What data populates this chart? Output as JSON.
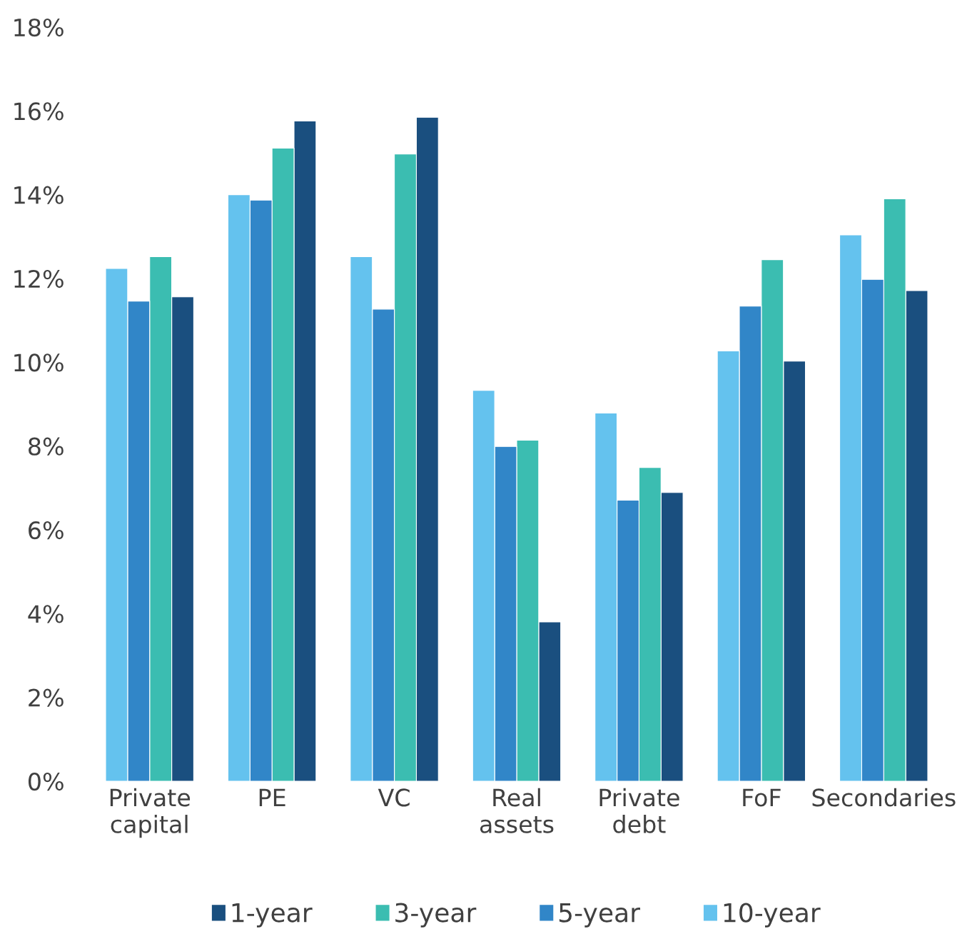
{
  "chart_data": {
    "type": "bar",
    "categories": [
      "Private\ncapital",
      "PE",
      "VC",
      "Real\nassets",
      "Private\ndebt",
      "FoF",
      "Secondaries"
    ],
    "series": [
      {
        "name": "1-year",
        "color": "#1a4f7f",
        "values": [
          11.56,
          15.76,
          15.85,
          3.8,
          6.89,
          10.03,
          11.71
        ]
      },
      {
        "name": "3-year",
        "color": "#3bbdb1",
        "values": [
          12.52,
          15.11,
          14.97,
          8.14,
          7.49,
          12.45,
          13.9
        ]
      },
      {
        "name": "5-year",
        "color": "#3186c8",
        "values": [
          11.46,
          13.87,
          11.27,
          7.99,
          6.71,
          11.34,
          11.98
        ]
      },
      {
        "name": "10-year",
        "color": "#64c2ee",
        "values": [
          12.24,
          14.0,
          12.52,
          9.33,
          8.79,
          10.27,
          13.04
        ]
      }
    ],
    "ylim": [
      0,
      18
    ],
    "yticks": [
      {
        "value": 0,
        "label": "0%"
      },
      {
        "value": 2,
        "label": "2%"
      },
      {
        "value": 4,
        "label": "4%"
      },
      {
        "value": 6,
        "label": "6%"
      },
      {
        "value": 8,
        "label": "8%"
      },
      {
        "value": 10,
        "label": "10%"
      },
      {
        "value": 12,
        "label": "12%"
      },
      {
        "value": 14,
        "label": "14%"
      },
      {
        "value": 16,
        "label": "16%"
      },
      {
        "value": 18,
        "label": "18%"
      }
    ],
    "grid": false,
    "legend": "bottom"
  }
}
